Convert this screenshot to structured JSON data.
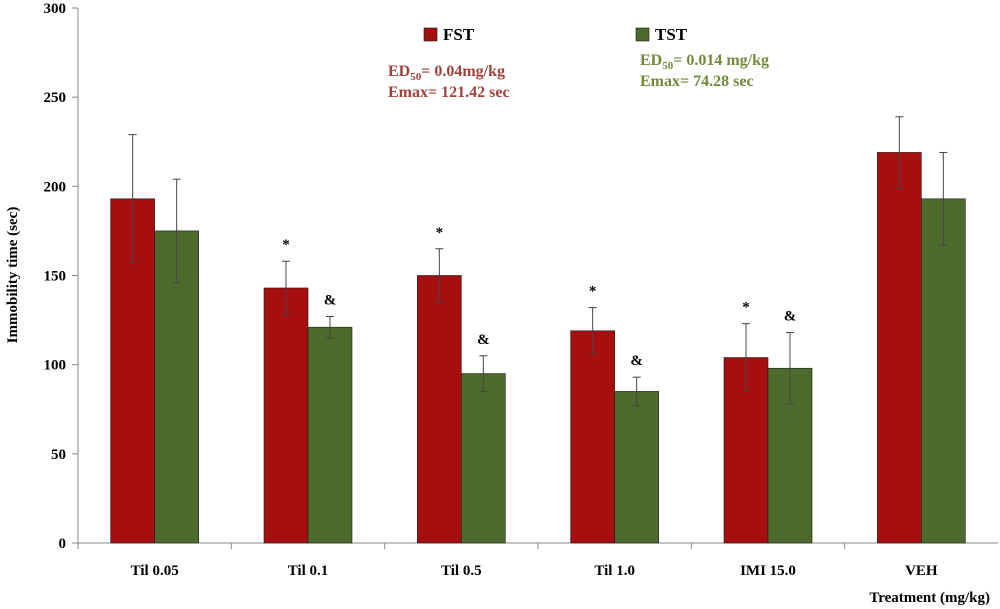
{
  "chart_data": {
    "type": "bar",
    "title": "",
    "xlabel": "Treatment (mg/kg)",
    "ylabel": "Immobility  time  (sec)",
    "ylim": [
      0,
      300
    ],
    "yticks": [
      0,
      50,
      100,
      150,
      200,
      250,
      300
    ],
    "grid": false,
    "legend_position": "top",
    "categories": [
      "Til 0.05",
      "Til 0.1",
      "Til 0.5",
      "Til 1.0",
      "IMI 15.0",
      "VEH"
    ],
    "series": [
      {
        "name": "FST",
        "color": "#A50F0F",
        "values": [
          193,
          143,
          150,
          119,
          104,
          219
        ],
        "errors": [
          36,
          15,
          15,
          13,
          19,
          20
        ],
        "markers": [
          "",
          "*",
          "*",
          "*",
          "*",
          ""
        ]
      },
      {
        "name": "TST",
        "color": "#4E6B2E",
        "values": [
          175,
          121,
          95,
          85,
          98,
          193
        ],
        "errors": [
          29,
          6,
          10,
          8,
          20,
          26
        ],
        "markers": [
          "",
          "&",
          "&",
          "&",
          "&",
          ""
        ]
      }
    ],
    "annotations": [
      {
        "series": "FST",
        "ed50_prefix": "ED",
        "ed50_sub": "50",
        "ed50_value": "= 0.04mg/kg",
        "emax": "Emax= 121.42 sec",
        "color": "#A0413A"
      },
      {
        "series": "TST",
        "ed50_prefix": "ED",
        "ed50_sub": "50",
        "ed50_value": "= 0.014 mg/kg",
        "emax": "Emax= 74.28 sec",
        "color": "#6F8B3A"
      }
    ]
  }
}
